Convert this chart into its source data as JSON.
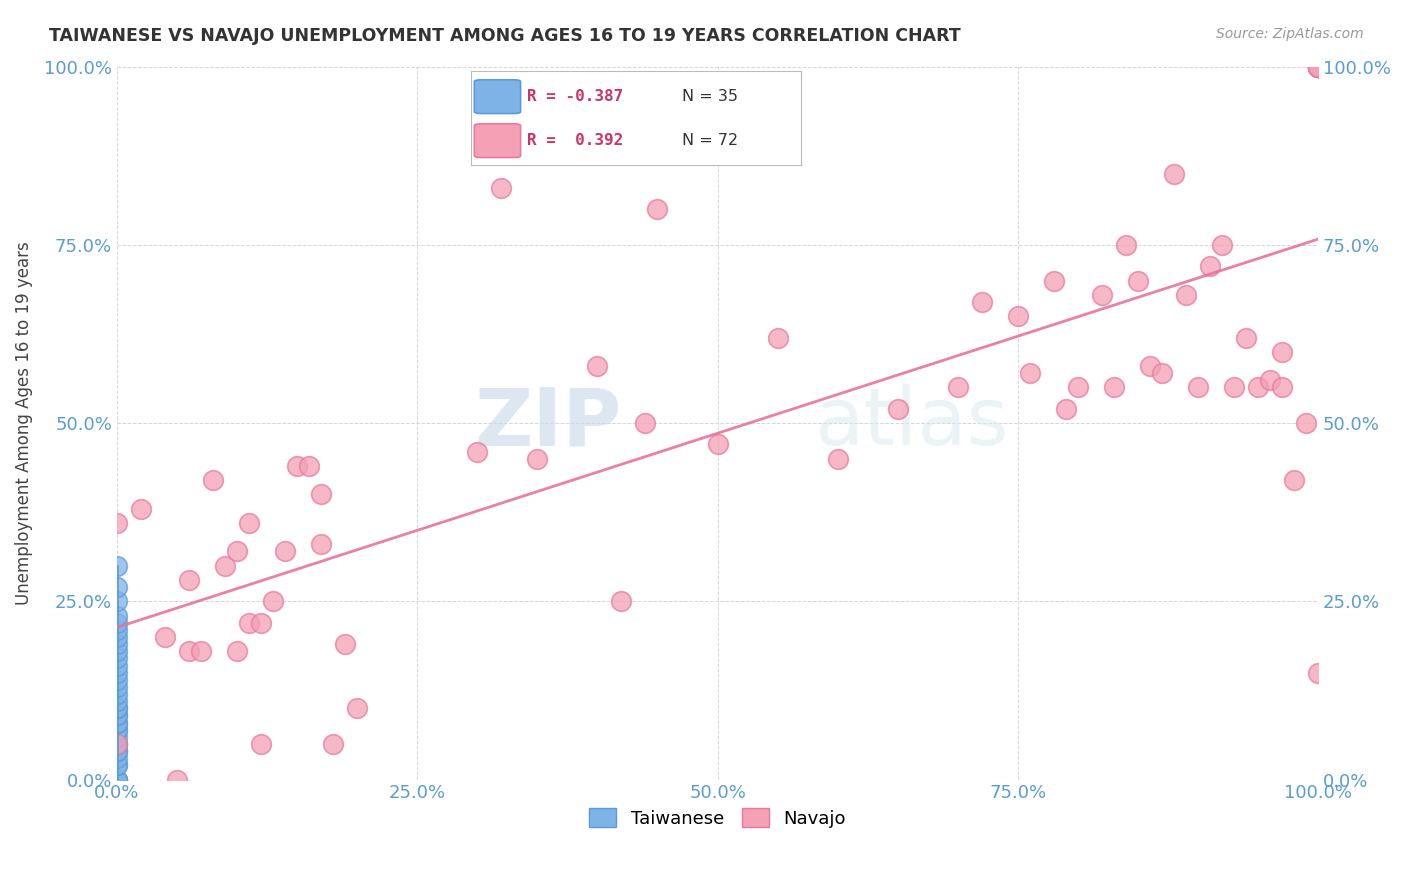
{
  "title": "TAIWANESE VS NAVAJO UNEMPLOYMENT AMONG AGES 16 TO 19 YEARS CORRELATION CHART",
  "source": "Source: ZipAtlas.com",
  "ylabel": "Unemployment Among Ages 16 to 19 years",
  "xlim": [
    0.0,
    1.0
  ],
  "ylim": [
    0.0,
    1.0
  ],
  "xticks": [
    0.0,
    0.25,
    0.5,
    0.75,
    1.0
  ],
  "yticks": [
    0.0,
    0.25,
    0.5,
    0.75,
    1.0
  ],
  "xticklabels": [
    "0.0%",
    "25.0%",
    "50.0%",
    "75.0%",
    "100.0%"
  ],
  "yticklabels": [
    "0.0%",
    "25.0%",
    "50.0%",
    "75.0%",
    "100.0%"
  ],
  "right_yticklabels": [
    "0.0%",
    "25.0%",
    "50.0%",
    "75.0%",
    "100.0%"
  ],
  "taiwanese_color": "#7EB3E8",
  "navajo_color": "#F4A0B5",
  "taiwanese_edge": "#5A9CD6",
  "navajo_edge": "#E87A9F",
  "trendline_taiwanese_color": "#5A9CD6",
  "trendline_navajo_color": "#E8729A",
  "background_color": "#FFFFFF",
  "watermark_zip": "ZIP",
  "watermark_atlas": "atlas",
  "legend_R_taiwanese": "-0.387",
  "legend_N_taiwanese": "35",
  "legend_R_navajo": "0.392",
  "legend_N_navajo": "72",
  "taiwanese_x": [
    0.0,
    0.0,
    0.0,
    0.0,
    0.0,
    0.0,
    0.0,
    0.0,
    0.0,
    0.0,
    0.0,
    0.0,
    0.0,
    0.0,
    0.0,
    0.0,
    0.0,
    0.0,
    0.0,
    0.0,
    0.0,
    0.0,
    0.0,
    0.0,
    0.0,
    0.0,
    0.0,
    0.0,
    0.0,
    0.0,
    0.0,
    0.0,
    0.0,
    0.0,
    0.0
  ],
  "taiwanese_y": [
    0.0,
    0.0,
    0.0,
    0.02,
    0.02,
    0.03,
    0.04,
    0.04,
    0.05,
    0.05,
    0.06,
    0.07,
    0.07,
    0.08,
    0.08,
    0.09,
    0.09,
    0.1,
    0.1,
    0.11,
    0.12,
    0.13,
    0.14,
    0.15,
    0.16,
    0.17,
    0.18,
    0.19,
    0.2,
    0.21,
    0.22,
    0.23,
    0.25,
    0.27,
    0.3
  ],
  "navajo_x": [
    0.0,
    0.0,
    0.02,
    0.04,
    0.05,
    0.06,
    0.06,
    0.07,
    0.08,
    0.09,
    0.1,
    0.1,
    0.11,
    0.11,
    0.12,
    0.12,
    0.13,
    0.14,
    0.15,
    0.16,
    0.17,
    0.17,
    0.18,
    0.19,
    0.2,
    0.3,
    0.32,
    0.35,
    0.4,
    0.42,
    0.44,
    0.45,
    0.5,
    0.55,
    0.6,
    0.65,
    0.7,
    0.72,
    0.75,
    0.76,
    0.78,
    0.79,
    0.8,
    0.82,
    0.83,
    0.84,
    0.85,
    0.86,
    0.87,
    0.88,
    0.89,
    0.9,
    0.91,
    0.92,
    0.93,
    0.94,
    0.95,
    0.96,
    0.97,
    0.97,
    0.98,
    0.99,
    1.0,
    1.0,
    1.0,
    1.0,
    1.0,
    1.0,
    1.0,
    1.0,
    1.0,
    1.0
  ],
  "navajo_y": [
    0.05,
    0.36,
    0.38,
    0.2,
    0.0,
    0.18,
    0.28,
    0.18,
    0.42,
    0.3,
    0.18,
    0.32,
    0.22,
    0.36,
    0.05,
    0.22,
    0.25,
    0.32,
    0.44,
    0.44,
    0.33,
    0.4,
    0.05,
    0.19,
    0.1,
    0.46,
    0.83,
    0.45,
    0.58,
    0.25,
    0.5,
    0.8,
    0.47,
    0.62,
    0.45,
    0.52,
    0.55,
    0.67,
    0.65,
    0.57,
    0.7,
    0.52,
    0.55,
    0.68,
    0.55,
    0.75,
    0.7,
    0.58,
    0.57,
    0.85,
    0.68,
    0.55,
    0.72,
    0.75,
    0.55,
    0.62,
    0.55,
    0.56,
    0.6,
    0.55,
    0.42,
    0.5,
    0.15,
    1.0,
    1.0,
    1.0,
    1.0,
    1.0,
    1.0,
    1.0,
    1.0,
    1.0
  ],
  "tw_trendline_x": [
    0.0,
    0.02
  ],
  "tw_trendline_y": [
    0.3,
    0.25
  ],
  "marker_size": 200
}
